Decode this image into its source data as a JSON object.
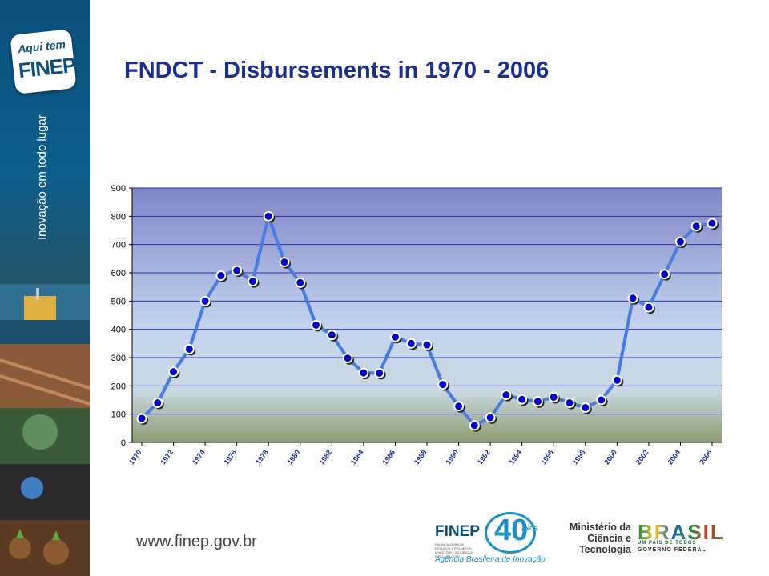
{
  "header": {
    "title": "FNDCT - Disbursements in 1970 - 2006"
  },
  "sidebar": {
    "logo_top": "Aqui tem",
    "logo_main": "FINEP",
    "tagline": "Inovação em todo lugar"
  },
  "footer": {
    "url": "www.finep.gov.br",
    "finep_word": "FINEP",
    "finep_sub": "FINANCIADORA DE ESTUDOS E PROJETOS MINISTÉRIO DA CIÊNCIA E TECNOLOGIA",
    "anos_num": "40",
    "anos_label": "ANOS",
    "agencia": "Agência Brasileira de Inovação",
    "ministerio_line1": "Ministério da",
    "ministerio_line2": "Ciência e Tecnologia",
    "brasil_word": "BRASIL",
    "brasil_sub": "UM PAÍS DE TODOS",
    "brasil_gov": "GOVERNO FEDERAL"
  },
  "colors": {
    "title": "#1a2f8f",
    "line": "#4a7be0",
    "marker": "#0000cc",
    "gridline": "#2f2faa"
  },
  "chart_data": {
    "type": "line",
    "title": "",
    "xlabel": "",
    "ylabel": "",
    "ylim": [
      0,
      900
    ],
    "yticks": [
      0,
      100,
      200,
      300,
      400,
      500,
      600,
      700,
      800,
      900
    ],
    "grid": true,
    "x": [
      1970,
      1971,
      1972,
      1973,
      1974,
      1975,
      1976,
      1977,
      1978,
      1979,
      1980,
      1981,
      1982,
      1983,
      1984,
      1985,
      1986,
      1987,
      1988,
      1989,
      1990,
      1991,
      1992,
      1993,
      1994,
      1995,
      1996,
      1997,
      1998,
      1999,
      2000,
      2001,
      2002,
      2003,
      2004,
      2005,
      2006
    ],
    "xtick_labels": [
      "1970",
      "1972",
      "1974",
      "1976",
      "1978",
      "1980",
      "1982",
      "1984",
      "1986",
      "1988",
      "1990",
      "1992",
      "1994",
      "1996",
      "1998",
      "2000",
      "2002",
      "2004",
      "2006"
    ],
    "series": [
      {
        "values": [
          85,
          140,
          250,
          330,
          500,
          590,
          608,
          570,
          800,
          638,
          565,
          415,
          380,
          298,
          246,
          245,
          373,
          350,
          345,
          205,
          128,
          60,
          88,
          168,
          152,
          145,
          160,
          140,
          123,
          150,
          220,
          510,
          478,
          595,
          710,
          765,
          775
        ]
      }
    ]
  }
}
